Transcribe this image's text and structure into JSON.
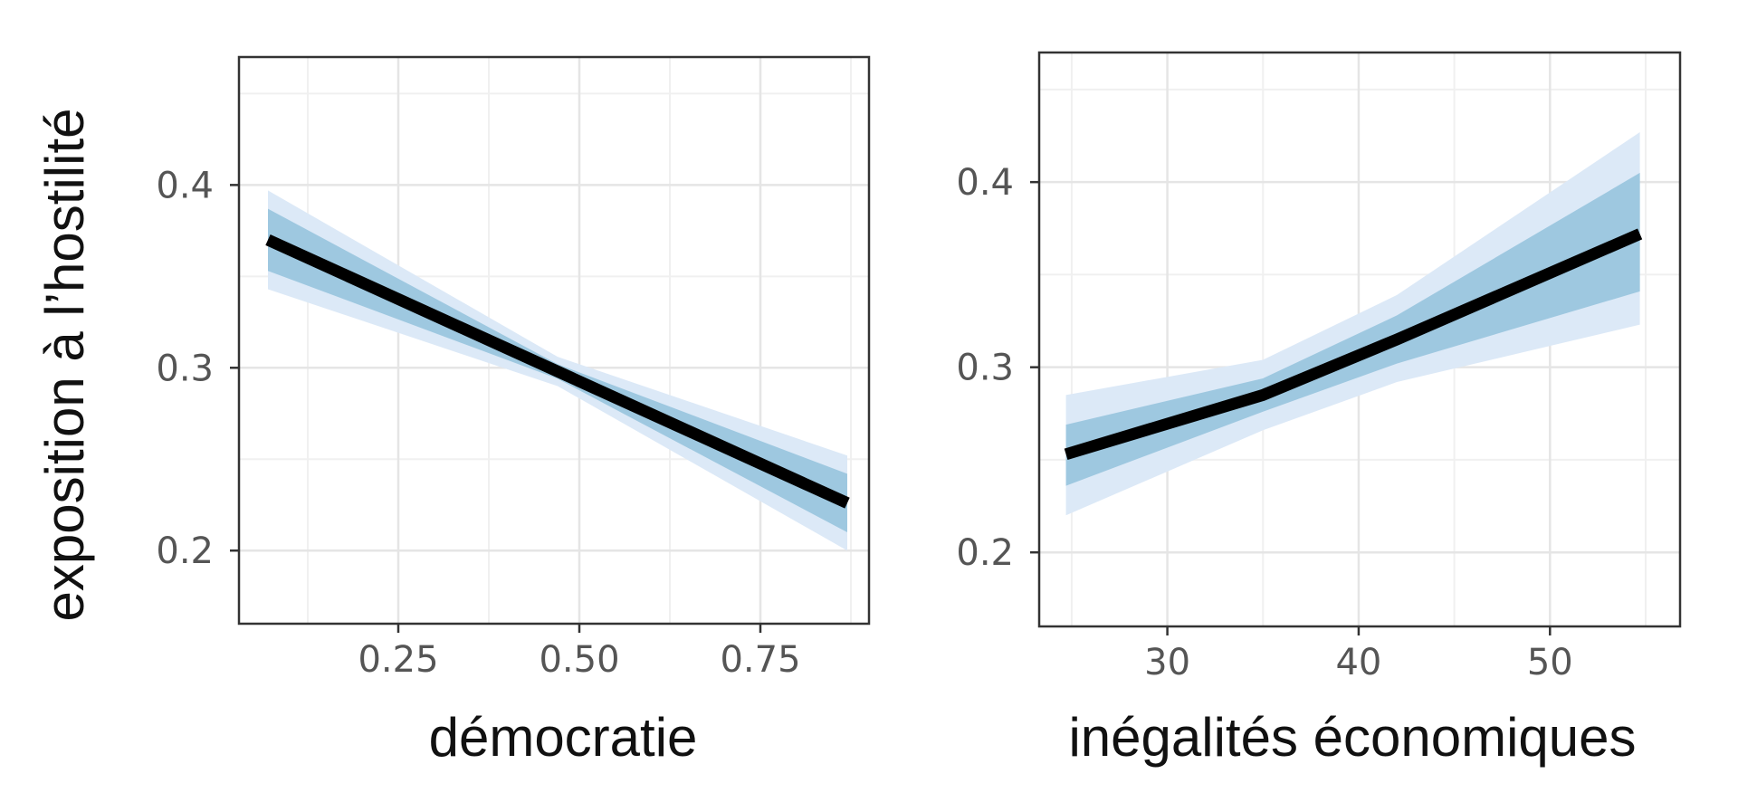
{
  "ylabel": "exposition à l’hostilité",
  "colors": {
    "band_outer": "#dce9f7",
    "band_inner": "#9ec8e0",
    "line": "#000000",
    "grid": "#e5e5e5",
    "frame": "#333333"
  },
  "chart_data": [
    {
      "type": "line",
      "xlabel": "démocratie",
      "ylabel": "exposition à l’hostilité",
      "xlim": [
        0.03,
        0.9
      ],
      "ylim": [
        0.16,
        0.47
      ],
      "xticks": [
        0.25,
        0.5,
        0.75
      ],
      "xtick_labels": [
        "0.25",
        "0.50",
        "0.75"
      ],
      "yticks": [
        0.2,
        0.3,
        0.4
      ],
      "ytick_labels": [
        "0.2",
        "0.3",
        "0.4"
      ],
      "grid": true,
      "x": [
        0.07,
        0.47,
        0.87
      ],
      "fit": [
        0.37,
        0.298,
        0.226
      ],
      "ci_inner": {
        "lower": [
          0.353,
          0.294,
          0.21
        ],
        "upper": [
          0.387,
          0.302,
          0.242
        ]
      },
      "ci_outer": {
        "lower": [
          0.343,
          0.29,
          0.2
        ],
        "upper": [
          0.397,
          0.306,
          0.252
        ]
      }
    },
    {
      "type": "line",
      "xlabel": "inégalités économiques",
      "ylabel": "",
      "xlim": [
        23.3,
        56.8
      ],
      "ylim": [
        0.16,
        0.47
      ],
      "xticks": [
        30,
        40,
        50
      ],
      "xtick_labels": [
        "30",
        "40",
        "50"
      ],
      "yticks": [
        0.2,
        0.3,
        0.4
      ],
      "ytick_labels": [
        "0.2",
        "0.3",
        "0.4"
      ],
      "grid": true,
      "x": [
        24.7,
        35,
        42,
        54.7
      ],
      "fit": [
        0.253,
        0.285,
        0.315,
        0.372
      ],
      "ci_inner": {
        "lower": [
          0.236,
          0.276,
          0.302,
          0.341
        ],
        "upper": [
          0.269,
          0.294,
          0.328,
          0.405
        ]
      },
      "ci_outer": {
        "lower": [
          0.22,
          0.266,
          0.292,
          0.323
        ],
        "upper": [
          0.285,
          0.304,
          0.339,
          0.427
        ]
      }
    }
  ]
}
